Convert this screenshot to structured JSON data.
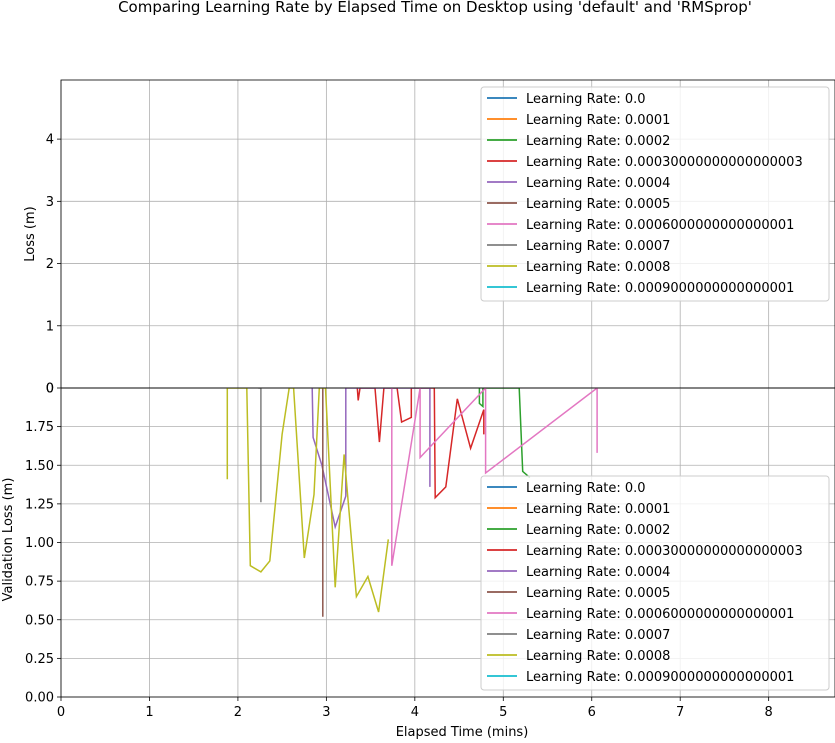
{
  "figure": {
    "title": "Comparing Learning Rate by Elapsed Time on Desktop using 'default' and 'RMSprop'",
    "background": "#ffffff",
    "grid_color": "#b0b0b0"
  },
  "chart_data": [
    {
      "type": "line",
      "panel": "top",
      "xlabel": "",
      "ylabel": "Loss (m)",
      "xlim": [
        0,
        8.75
      ],
      "ylim": [
        0,
        4.95
      ],
      "yticks": [
        "0",
        "1",
        "2",
        "3",
        "4"
      ],
      "grid": true,
      "legend": "upper right",
      "series": [
        {
          "name": "Learning Rate: 0.0",
          "color": "#1f77b4",
          "points": []
        },
        {
          "name": "Learning Rate: 0.0001",
          "color": "#ff7f0e",
          "points": []
        },
        {
          "name": "Learning Rate: 0.0002",
          "color": "#2ca02c",
          "points": []
        },
        {
          "name": "Learning Rate: 0.00030000000000000003",
          "color": "#d62728",
          "points": []
        },
        {
          "name": "Learning Rate: 0.0004",
          "color": "#9467bd",
          "points": []
        },
        {
          "name": "Learning Rate: 0.0005",
          "color": "#8c564b",
          "points": []
        },
        {
          "name": "Learning Rate: 0.0006000000000000001",
          "color": "#e377c2",
          "points": []
        },
        {
          "name": "Learning Rate: 0.0007",
          "color": "#7f7f7f",
          "points": []
        },
        {
          "name": "Learning Rate: 0.0008",
          "color": "#bcbd22",
          "points": []
        },
        {
          "name": "Learning Rate: 0.0009000000000000001",
          "color": "#17becf",
          "points": []
        }
      ]
    },
    {
      "type": "line",
      "panel": "bottom",
      "xlabel": "Elapsed Time (mins)",
      "ylabel": "Validation Loss (m)",
      "xlim": [
        0,
        8.75
      ],
      "ylim": [
        0,
        2.0
      ],
      "xticks": [
        "0",
        "1",
        "2",
        "3",
        "4",
        "5",
        "6",
        "7",
        "8"
      ],
      "yticks": [
        "0.00",
        "0.25",
        "0.50",
        "0.75",
        "1.00",
        "1.25",
        "1.50",
        "1.75"
      ],
      "top_tick_label": "0",
      "grid": true,
      "legend": "lower right",
      "series": [
        {
          "name": "Learning Rate: 0.0",
          "color": "#1f77b4",
          "points": []
        },
        {
          "name": "Learning Rate: 0.0001",
          "color": "#ff7f0e",
          "points": []
        },
        {
          "name": "Learning Rate: 0.0002",
          "color": "#2ca02c",
          "points": [
            [
              4.73,
              2.0
            ],
            [
              4.73,
              1.9
            ],
            [
              4.77,
              1.88
            ],
            [
              4.77,
              2.0
            ],
            [
              5.18,
              2.0
            ],
            [
              5.22,
              1.46
            ],
            [
              5.3,
              1.42
            ]
          ]
        },
        {
          "name": "Learning Rate: 0.00030000000000000003",
          "color": "#d62728",
          "points": [
            [
              3.35,
              2.0
            ],
            [
              3.36,
              1.92
            ],
            [
              3.38,
              2.0
            ],
            [
              3.55,
              2.0
            ],
            [
              3.6,
              1.65
            ],
            [
              3.65,
              2.0
            ],
            [
              3.8,
              2.0
            ],
            [
              3.85,
              1.78
            ],
            [
              3.96,
              1.81
            ],
            [
              3.96,
              2.0
            ],
            [
              4.22,
              2.0
            ],
            [
              4.23,
              1.29
            ],
            [
              4.35,
              1.36
            ],
            [
              4.48,
              1.93
            ],
            [
              4.63,
              1.61
            ],
            [
              4.78,
              1.86
            ],
            [
              4.78,
              1.7
            ]
          ]
        },
        {
          "name": "Learning Rate: 0.0004",
          "color": "#9467bd",
          "points": [
            [
              2.84,
              2.0
            ],
            [
              2.85,
              1.68
            ],
            [
              2.95,
              1.5
            ],
            [
              3.1,
              1.1
            ],
            [
              3.22,
              1.3
            ],
            [
              3.22,
              2.0
            ],
            [
              4.17,
              2.0
            ],
            [
              4.17,
              1.36
            ]
          ]
        },
        {
          "name": "Learning Rate: 0.0005",
          "color": "#8c564b",
          "points": [
            [
              2.96,
              2.0
            ],
            [
              2.96,
              0.52
            ]
          ]
        },
        {
          "name": "Learning Rate: 0.0006000000000000001",
          "color": "#e377c2",
          "points": [
            [
              3.74,
              2.0
            ],
            [
              3.74,
              0.85
            ],
            [
              4.06,
              2.0
            ],
            [
              4.06,
              1.55
            ],
            [
              4.8,
              2.0
            ],
            [
              4.8,
              1.45
            ],
            [
              6.06,
              2.0
            ],
            [
              6.06,
              1.58
            ]
          ]
        },
        {
          "name": "Learning Rate: 0.0007",
          "color": "#7f7f7f",
          "points": [
            [
              2.23,
              2.0
            ],
            [
              2.26,
              2.0
            ],
            [
              2.26,
              1.26
            ]
          ]
        },
        {
          "name": "Learning Rate: 0.0008",
          "color": "#bcbd22",
          "points": [
            [
              1.88,
              1.41
            ],
            [
              1.88,
              2.0
            ],
            [
              2.1,
              2.0
            ],
            [
              2.14,
              0.85
            ],
            [
              2.26,
              0.81
            ],
            [
              2.36,
              0.88
            ],
            [
              2.5,
              1.7
            ],
            [
              2.58,
              2.0
            ],
            [
              2.63,
              2.0
            ],
            [
              2.75,
              0.9
            ],
            [
              2.86,
              1.31
            ],
            [
              2.92,
              2.0
            ],
            [
              2.99,
              2.0
            ],
            [
              3.1,
              0.71
            ],
            [
              3.2,
              1.57
            ],
            [
              3.34,
              0.65
            ],
            [
              3.47,
              0.78
            ],
            [
              3.59,
              0.55
            ],
            [
              3.7,
              1.02
            ]
          ]
        },
        {
          "name": "Learning Rate: 0.0009000000000000001",
          "color": "#17becf",
          "points": []
        }
      ]
    }
  ]
}
